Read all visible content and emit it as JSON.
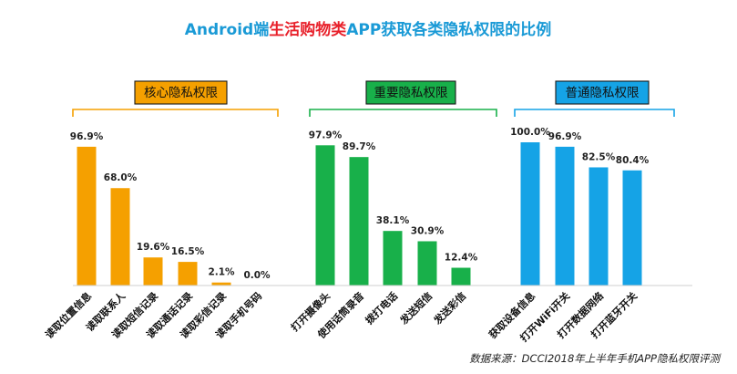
{
  "title": {
    "prefix": "Android端",
    "highlight": "生活购物类",
    "suffix": "APP获取各类隐私权限的比例",
    "color": "#1a9ad6",
    "highlight_color": "#e8202a"
  },
  "source": "数据来源：DCCI2018年上半年手机APP隐私权限评测",
  "chart_data": {
    "type": "bar",
    "title": "Android端生活购物类APP获取各类隐私权限的比例",
    "ylim": [
      0,
      100
    ],
    "unit": "%",
    "groups": [
      {
        "name": "核心隐私权限",
        "color": "#f5a000",
        "categories": [
          "读取位置信息",
          "读取联系人",
          "读取短信记录",
          "读取通话记录",
          "读取彩信记录",
          "读取手机号码"
        ],
        "values": [
          96.9,
          68.0,
          19.6,
          16.5,
          2.1,
          0.0
        ]
      },
      {
        "name": "重要隐私权限",
        "color": "#18b04a",
        "categories": [
          "打开摄像头",
          "使用话筒录音",
          "拨打电话",
          "发送短信",
          "发送彩信"
        ],
        "values": [
          97.9,
          89.7,
          38.1,
          30.9,
          12.4
        ]
      },
      {
        "name": "普通隐私权限",
        "color": "#15a3e6",
        "categories": [
          "获取设备信息",
          "打开WiFi开关",
          "打开数据网络",
          "打开蓝牙开关"
        ],
        "values": [
          100.0,
          96.9,
          82.5,
          80.4
        ]
      }
    ]
  }
}
